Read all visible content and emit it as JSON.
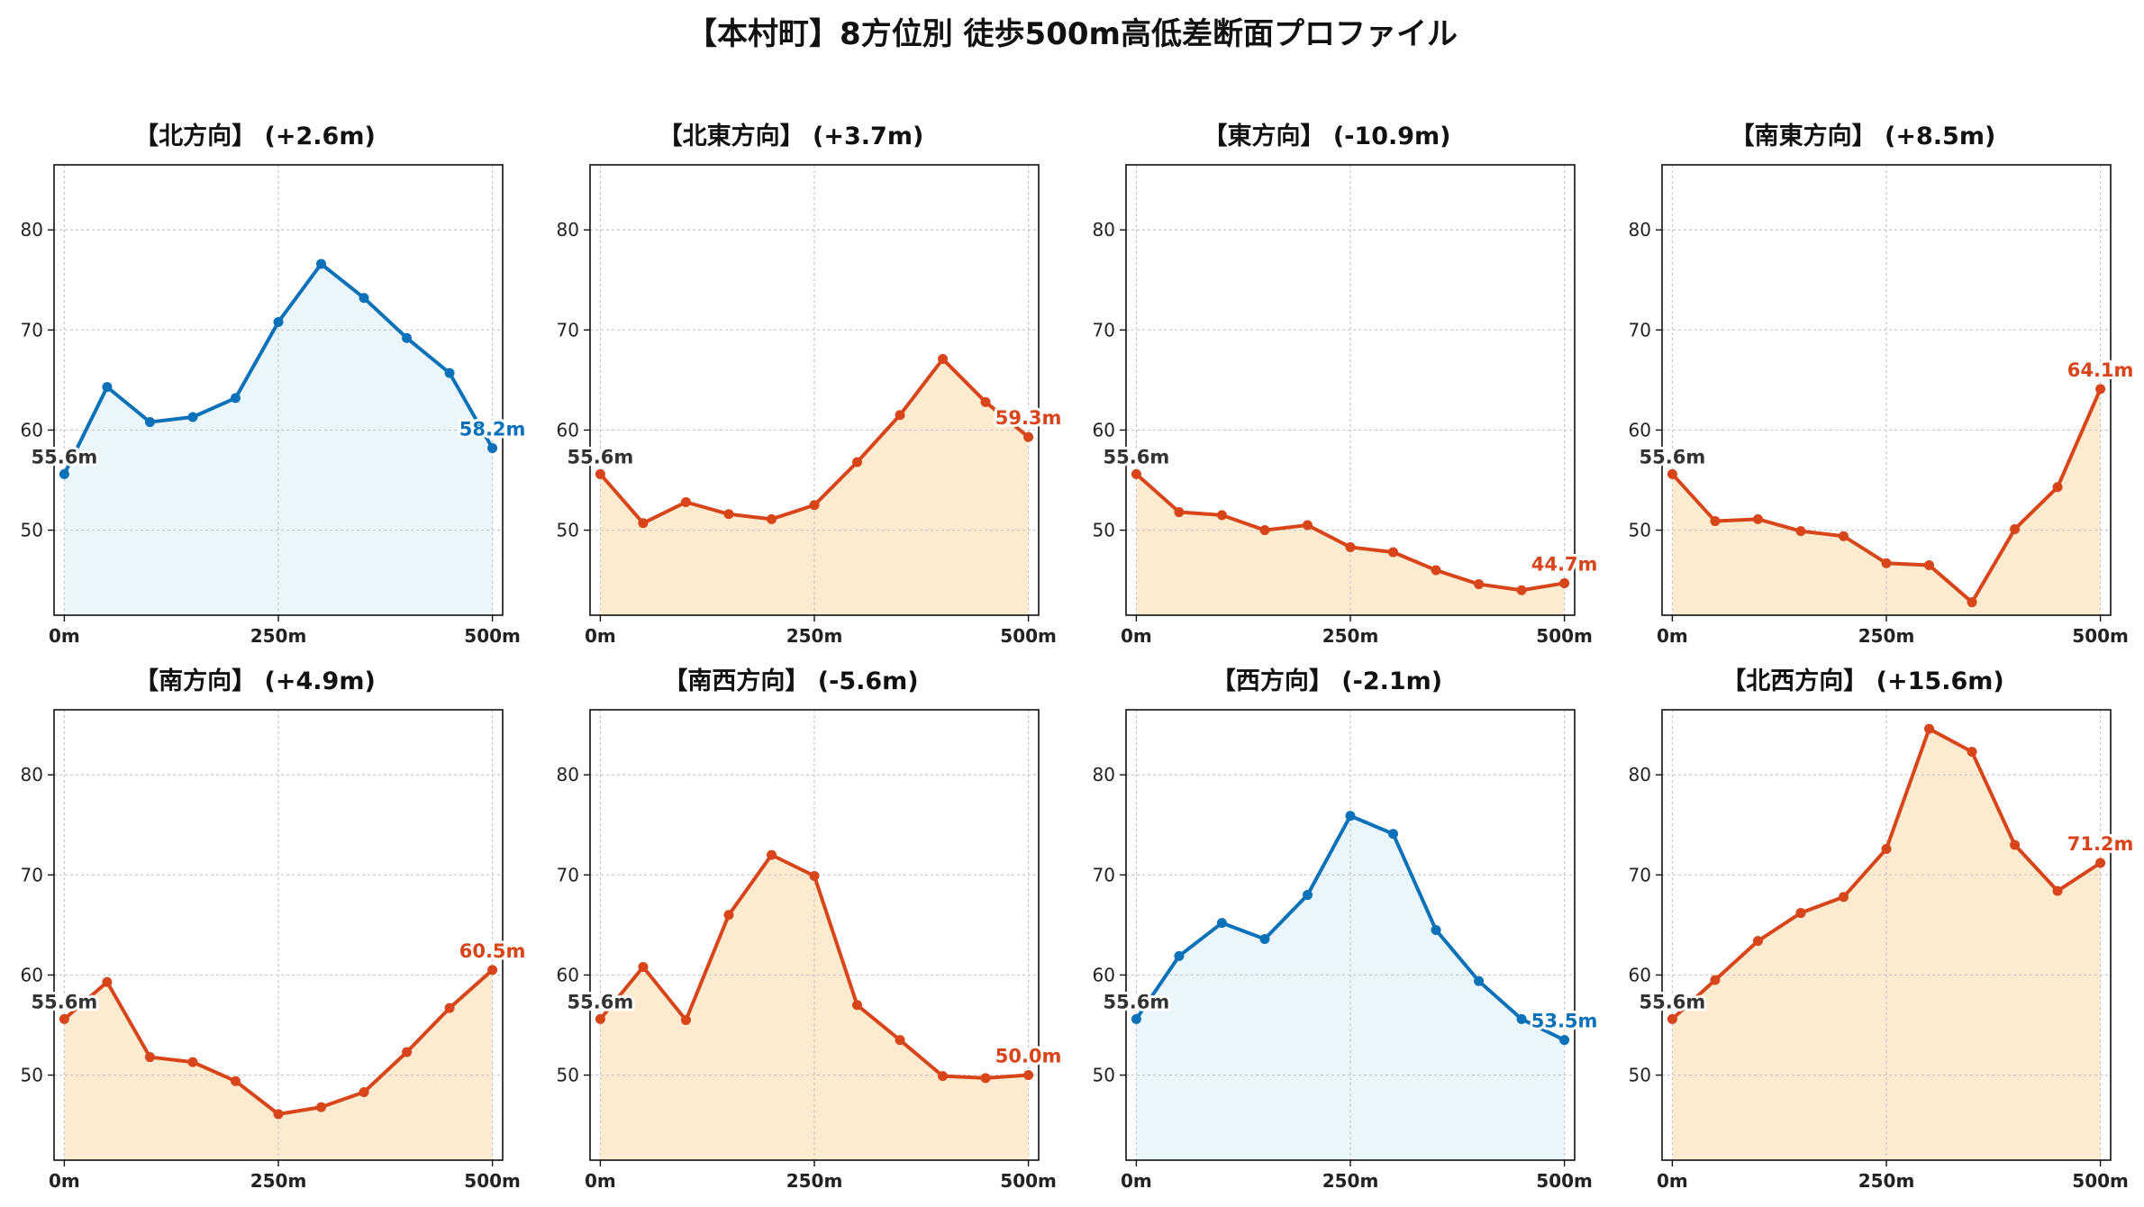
{
  "title": "【本村町】8方位別 徒歩500m高低差断面プロファイル",
  "colors": {
    "up": "#0b72b9",
    "up_fill": "#eaf6fb",
    "down": "#d8451a",
    "down_fill": "#fdebd0",
    "start_label": "#333333",
    "grid": "#c8c8c8"
  },
  "chart_data": [
    {
      "type": "line",
      "title": "【北方向】 (+2.6m)",
      "style": "up",
      "x": [
        0,
        50,
        100,
        150,
        200,
        250,
        300,
        350,
        400,
        450,
        500
      ],
      "values": [
        55.6,
        64.3,
        60.8,
        61.3,
        63.2,
        70.8,
        76.6,
        73.2,
        69.2,
        65.7,
        58.2
      ],
      "start_label": "55.6m",
      "end_label": "58.2m",
      "xticks": [
        "0m",
        "250m",
        "500m"
      ],
      "yticks": [
        50,
        60,
        70,
        80
      ],
      "ylim": [
        41.5,
        86.5
      ],
      "xlim": [
        -12,
        512
      ],
      "grid": true
    },
    {
      "type": "line",
      "title": "【北東方向】 (+3.7m)",
      "style": "down",
      "x": [
        0,
        50,
        100,
        150,
        200,
        250,
        300,
        350,
        400,
        450,
        500
      ],
      "values": [
        55.6,
        50.7,
        52.8,
        51.6,
        51.1,
        52.5,
        56.8,
        61.5,
        67.1,
        62.8,
        59.3
      ],
      "start_label": "55.6m",
      "end_label": "59.3m",
      "xticks": [
        "0m",
        "250m",
        "500m"
      ],
      "yticks": [
        50,
        60,
        70,
        80
      ],
      "ylim": [
        41.5,
        86.5
      ],
      "xlim": [
        -12,
        512
      ],
      "grid": true
    },
    {
      "type": "line",
      "title": "【東方向】 (-10.9m)",
      "style": "down",
      "x": [
        0,
        50,
        100,
        150,
        200,
        250,
        300,
        350,
        400,
        450,
        500
      ],
      "values": [
        55.6,
        51.8,
        51.5,
        50.0,
        50.5,
        48.3,
        47.8,
        46.0,
        44.6,
        44.0,
        44.7
      ],
      "start_label": "55.6m",
      "end_label": "44.7m",
      "xticks": [
        "0m",
        "250m",
        "500m"
      ],
      "yticks": [
        50,
        60,
        70,
        80
      ],
      "ylim": [
        41.5,
        86.5
      ],
      "xlim": [
        -12,
        512
      ],
      "grid": true
    },
    {
      "type": "line",
      "title": "【南東方向】 (+8.5m)",
      "style": "down",
      "x": [
        0,
        50,
        100,
        150,
        200,
        250,
        300,
        350,
        400,
        450,
        500
      ],
      "values": [
        55.6,
        50.9,
        51.1,
        49.9,
        49.4,
        46.7,
        46.5,
        42.8,
        50.1,
        54.3,
        64.1
      ],
      "start_label": "55.6m",
      "end_label": "64.1m",
      "xticks": [
        "0m",
        "250m",
        "500m"
      ],
      "yticks": [
        50,
        60,
        70,
        80
      ],
      "ylim": [
        41.5,
        86.5
      ],
      "xlim": [
        -12,
        512
      ],
      "grid": true
    },
    {
      "type": "line",
      "title": "【南方向】 (+4.9m)",
      "style": "down",
      "x": [
        0,
        50,
        100,
        150,
        200,
        250,
        300,
        350,
        400,
        450,
        500
      ],
      "values": [
        55.6,
        59.3,
        51.8,
        51.3,
        49.4,
        46.1,
        46.8,
        48.3,
        52.3,
        56.7,
        60.5
      ],
      "start_label": "55.6m",
      "end_label": "60.5m",
      "xticks": [
        "0m",
        "250m",
        "500m"
      ],
      "yticks": [
        50,
        60,
        70,
        80
      ],
      "ylim": [
        41.5,
        86.5
      ],
      "xlim": [
        -12,
        512
      ],
      "grid": true
    },
    {
      "type": "line",
      "title": "【南西方向】 (-5.6m)",
      "style": "down",
      "x": [
        0,
        50,
        100,
        150,
        200,
        250,
        300,
        350,
        400,
        450,
        500
      ],
      "values": [
        55.6,
        60.8,
        55.5,
        66.0,
        72.0,
        69.9,
        57.0,
        53.5,
        49.9,
        49.7,
        50.0
      ],
      "start_label": "55.6m",
      "end_label": "50.0m",
      "xticks": [
        "0m",
        "250m",
        "500m"
      ],
      "yticks": [
        50,
        60,
        70,
        80
      ],
      "ylim": [
        41.5,
        86.5
      ],
      "xlim": [
        -12,
        512
      ],
      "grid": true
    },
    {
      "type": "line",
      "title": "【西方向】 (-2.1m)",
      "style": "up",
      "x": [
        0,
        50,
        100,
        150,
        200,
        250,
        300,
        350,
        400,
        450,
        500
      ],
      "values": [
        55.6,
        61.9,
        65.2,
        63.6,
        68.0,
        75.9,
        74.1,
        64.5,
        59.4,
        55.6,
        53.5
      ],
      "start_label": "55.6m",
      "end_label": "53.5m",
      "xticks": [
        "0m",
        "250m",
        "500m"
      ],
      "yticks": [
        50,
        60,
        70,
        80
      ],
      "ylim": [
        41.5,
        86.5
      ],
      "xlim": [
        -12,
        512
      ],
      "grid": true
    },
    {
      "type": "line",
      "title": "【北西方向】 (+15.6m)",
      "style": "down",
      "x": [
        0,
        50,
        100,
        150,
        200,
        250,
        300,
        350,
        400,
        450,
        500
      ],
      "values": [
        55.6,
        59.5,
        63.4,
        66.2,
        67.8,
        72.6,
        84.6,
        82.3,
        73.0,
        68.4,
        71.2
      ],
      "start_label": "55.6m",
      "end_label": "71.2m",
      "xticks": [
        "0m",
        "250m",
        "500m"
      ],
      "yticks": [
        50,
        60,
        70,
        80
      ],
      "ylim": [
        41.5,
        86.5
      ],
      "xlim": [
        -12,
        512
      ],
      "grid": true
    }
  ]
}
